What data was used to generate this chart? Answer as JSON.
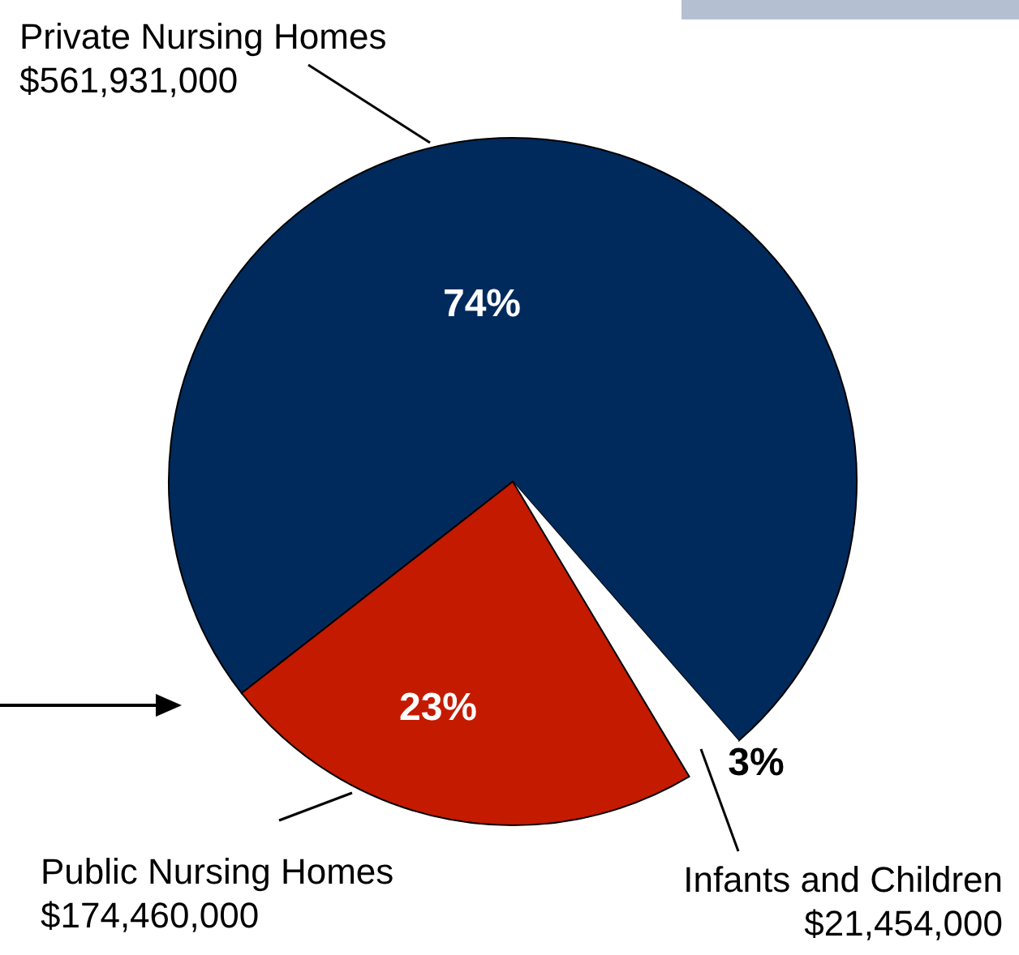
{
  "chart_data": {
    "type": "pie",
    "categories": [
      "Private Nursing Homes",
      "Infants and Children",
      "Public Nursing Homes"
    ],
    "values": [
      561931000,
      21454000,
      174460000
    ],
    "colors": [
      "#002a5c",
      "#ffffff",
      "#c41a00"
    ],
    "value_labels": [
      "$561,931,000",
      "$21,454,000",
      "$174,460,000"
    ],
    "annotations": [
      "74%",
      "3%",
      "23%"
    ]
  }
}
